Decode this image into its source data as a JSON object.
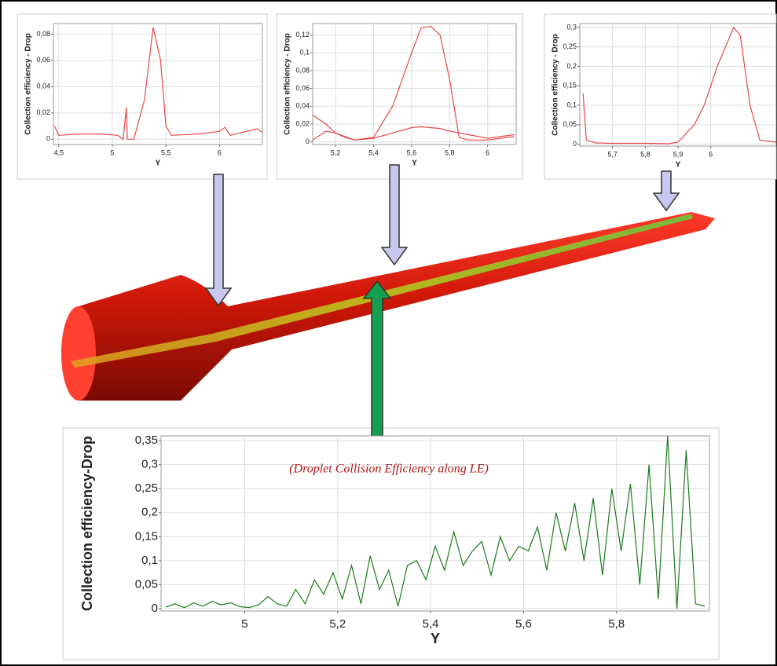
{
  "chart_data": [
    {
      "type": "line",
      "xlabel": "Y",
      "ylabel": "Collection efficiency - Drop",
      "x": [
        4.46,
        4.5,
        4.7,
        4.9,
        5.05,
        5.1,
        5.13,
        5.14,
        5.2,
        5.3,
        5.38,
        5.45,
        5.5,
        5.55,
        5.8,
        6.0,
        6.05,
        6.1,
        6.35,
        6.4
      ],
      "series": [
        {
          "color": "#e8474a",
          "values": [
            0.01,
            0.003,
            0.004,
            0.004,
            0.003,
            0.0,
            0.024,
            0.0,
            0.0,
            0.03,
            0.085,
            0.06,
            0.01,
            0.003,
            0.004,
            0.006,
            0.009,
            0.003,
            0.008,
            0.005
          ]
        }
      ],
      "xlim": [
        4.45,
        6.4
      ],
      "ylim": [
        -0.004,
        0.088
      ],
      "xticks": [
        {
          "value": 4.5,
          "label": "4,5"
        },
        5,
        {
          "value": 5.5,
          "label": "5,5"
        },
        6
      ],
      "yticks": [
        0,
        {
          "value": 0.02,
          "label": "0,02"
        },
        {
          "value": 0.04,
          "label": "0,04"
        },
        {
          "value": 0.06,
          "label": "0,06"
        },
        {
          "value": 0.08,
          "label": "0,08"
        }
      ],
      "grid": true
    },
    {
      "type": "line",
      "xlabel": "Y",
      "ylabel": "Collection efficiency - Drop",
      "x": [
        5.08,
        5.15,
        5.2,
        5.25,
        5.3,
        5.4,
        5.5,
        5.6,
        5.65,
        5.7,
        5.75,
        5.8,
        5.85,
        5.9,
        6.0,
        6.14
      ],
      "series": [
        {
          "color": "#e8474a",
          "values": [
            0.03,
            0.02,
            0.01,
            0.005,
            0.002,
            0.005,
            0.04,
            0.1,
            0.128,
            0.13,
            0.12,
            0.07,
            0.005,
            0.002,
            0.002,
            0.006
          ]
        },
        {
          "color": "#e8474a",
          "values": [
            0.002,
            0.012,
            0.01,
            0.006,
            0.002,
            0.004,
            0.01,
            0.016,
            0.017,
            0.016,
            0.015,
            0.012,
            0.01,
            0.008,
            0.004,
            0.008
          ]
        }
      ],
      "xlim": [
        5.08,
        6.15
      ],
      "ylim": [
        -0.003,
        0.133
      ],
      "xticks": [
        {
          "value": 5.2,
          "label": "5,2"
        },
        {
          "value": 5.4,
          "label": "5,4"
        },
        {
          "value": 5.6,
          "label": "5,6"
        },
        {
          "value": 5.8,
          "label": "5,8"
        },
        6
      ],
      "yticks": [
        0,
        {
          "value": 0.02,
          "label": "0,02"
        },
        {
          "value": 0.04,
          "label": "0,04"
        },
        {
          "value": 0.06,
          "label": "0,06"
        },
        {
          "value": 0.08,
          "label": "0,08"
        },
        {
          "value": 0.1,
          "label": "0,1"
        },
        {
          "value": 0.12,
          "label": "0,12"
        }
      ],
      "grid": true
    },
    {
      "type": "line",
      "xlabel": "Y",
      "ylabel": "Collection efficiency - Drop",
      "x": [
        5.61,
        5.62,
        5.65,
        5.7,
        5.8,
        5.87,
        5.9,
        5.95,
        5.98,
        6.0,
        6.02,
        6.05,
        6.07,
        6.09,
        6.12,
        6.15,
        6.2
      ],
      "series": [
        {
          "color": "#e8474a",
          "values": [
            0.13,
            0.01,
            0.003,
            0.002,
            0.002,
            0.001,
            0.005,
            0.05,
            0.1,
            0.15,
            0.2,
            0.26,
            0.3,
            0.28,
            0.1,
            0.01,
            0.005
          ]
        }
      ],
      "xlim": [
        5.6,
        6.2
      ],
      "ylim": [
        -0.005,
        0.31
      ],
      "xticks": [
        {
          "value": 5.7,
          "label": "5,7"
        },
        {
          "value": 5.8,
          "label": "5,8"
        },
        {
          "value": 5.9,
          "label": "5,9"
        },
        6
      ],
      "yticks": [
        0,
        {
          "value": 0.05,
          "label": "0,05"
        },
        {
          "value": 0.1,
          "label": "0,1"
        },
        {
          "value": 0.15,
          "label": "0,15"
        },
        {
          "value": 0.2,
          "label": "0,2"
        },
        {
          "value": 0.25,
          "label": "0,25"
        },
        {
          "value": 0.3,
          "label": "0,3"
        }
      ],
      "grid": true
    },
    {
      "type": "line",
      "xlabel": "Y",
      "ylabel": "Collection efficiency-Drop",
      "annotation": "(Droplet Collision Efficiency along LE)",
      "x": [
        4.83,
        4.85,
        4.87,
        4.89,
        4.91,
        4.93,
        4.95,
        4.97,
        4.99,
        5.01,
        5.03,
        5.05,
        5.07,
        5.09,
        5.11,
        5.13,
        5.15,
        5.17,
        5.19,
        5.21,
        5.23,
        5.25,
        5.27,
        5.29,
        5.31,
        5.33,
        5.35,
        5.37,
        5.39,
        5.41,
        5.43,
        5.45,
        5.47,
        5.49,
        5.51,
        5.53,
        5.55,
        5.57,
        5.59,
        5.61,
        5.63,
        5.65,
        5.67,
        5.69,
        5.71,
        5.73,
        5.75,
        5.77,
        5.79,
        5.81,
        5.83,
        5.85,
        5.87,
        5.89,
        5.91,
        5.93,
        5.95,
        5.97,
        5.99
      ],
      "series": [
        {
          "color": "#1a7a1a",
          "values": [
            0.003,
            0.01,
            0.002,
            0.012,
            0.005,
            0.015,
            0.008,
            0.012,
            0.004,
            0.002,
            0.008,
            0.025,
            0.01,
            0.005,
            0.04,
            0.01,
            0.06,
            0.03,
            0.075,
            0.02,
            0.09,
            0.01,
            0.11,
            0.04,
            0.08,
            0.005,
            0.09,
            0.1,
            0.06,
            0.13,
            0.08,
            0.16,
            0.09,
            0.12,
            0.14,
            0.07,
            0.15,
            0.1,
            0.13,
            0.12,
            0.17,
            0.08,
            0.2,
            0.12,
            0.22,
            0.1,
            0.23,
            0.07,
            0.25,
            0.12,
            0.26,
            0.05,
            0.3,
            0.02,
            0.36,
            0.0,
            0.33,
            0.01,
            0.005
          ]
        }
      ],
      "xlim": [
        4.82,
        6.0
      ],
      "ylim": [
        -0.005,
        0.36
      ],
      "xticks": [
        5,
        {
          "value": 5.2,
          "label": "5,2"
        },
        {
          "value": 5.4,
          "label": "5,4"
        },
        {
          "value": 5.6,
          "label": "5,6"
        },
        {
          "value": 5.8,
          "label": "5,8"
        }
      ],
      "yticks": [
        0,
        {
          "value": 0.05,
          "label": "0,05"
        },
        {
          "value": 0.1,
          "label": "0,1"
        },
        {
          "value": 0.15,
          "label": "0,15"
        },
        {
          "value": 0.2,
          "label": "0,2"
        },
        {
          "value": 0.25,
          "label": "0,25"
        },
        {
          "value": 0.3,
          "label": "0,3"
        },
        {
          "value": 0.35,
          "label": "0,35"
        }
      ],
      "grid": true
    }
  ]
}
